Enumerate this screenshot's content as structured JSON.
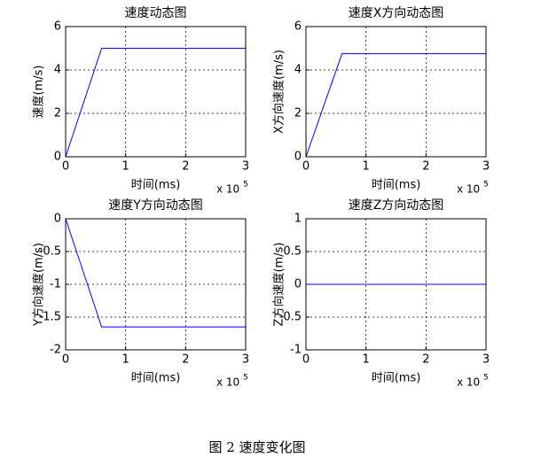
{
  "chart_data": [
    {
      "type": "line",
      "title": "速度动态图",
      "xlabel": "时间(ms)",
      "ylabel": "速度(m/s)",
      "x_multiplier": "x 10",
      "x_multiplier_exp": "5",
      "x": [
        0,
        0.6,
        3
      ],
      "series": [
        {
          "color": "#0000ff",
          "values": [
            0,
            5,
            5
          ]
        }
      ],
      "xlim": [
        0,
        3
      ],
      "ylim": [
        0,
        6
      ],
      "xticks": [
        0,
        1,
        2,
        3
      ],
      "yticks": [
        0,
        2,
        4,
        6
      ],
      "grid": true
    },
    {
      "type": "line",
      "title": "速度X方向动态图",
      "xlabel": "时间(ms)",
      "ylabel": "X方向速度(m/s)",
      "x_multiplier": "x 10",
      "x_multiplier_exp": "5",
      "x": [
        0,
        0.6,
        3
      ],
      "series": [
        {
          "color": "#0000ff",
          "values": [
            0,
            4.75,
            4.75
          ]
        }
      ],
      "xlim": [
        0,
        3
      ],
      "ylim": [
        0,
        6
      ],
      "xticks": [
        0,
        1,
        2,
        3
      ],
      "yticks": [
        0,
        2,
        4,
        6
      ],
      "grid": true
    },
    {
      "type": "line",
      "title": "速度Y方向动态图",
      "xlabel": "时间(ms)",
      "ylabel": "Y方向速度(m/s)",
      "x_multiplier": "x 10",
      "x_multiplier_exp": "5",
      "x": [
        0,
        0.6,
        3
      ],
      "series": [
        {
          "color": "#0000ff",
          "values": [
            0,
            -1.65,
            -1.65
          ]
        }
      ],
      "xlim": [
        0,
        3
      ],
      "ylim": [
        -2,
        0
      ],
      "xticks": [
        0,
        1,
        2,
        3
      ],
      "yticks": [
        -2,
        -1.5,
        -1,
        -0.5,
        0
      ],
      "grid": true
    },
    {
      "type": "line",
      "title": "速度Z方向动态图",
      "xlabel": "时间(ms)",
      "ylabel": "Z方向速度(m/s)",
      "x_multiplier": "x 10",
      "x_multiplier_exp": "5",
      "x": [
        0,
        0.6,
        3
      ],
      "series": [
        {
          "color": "#0000ff",
          "values": [
            0,
            0,
            0
          ]
        }
      ],
      "xlim": [
        0,
        3
      ],
      "ylim": [
        -1,
        1
      ],
      "xticks": [
        0,
        1,
        2,
        3
      ],
      "yticks": [
        -1,
        -0.5,
        0,
        0.5,
        1
      ],
      "grid": true
    }
  ],
  "caption": "图 2  速度变化图"
}
